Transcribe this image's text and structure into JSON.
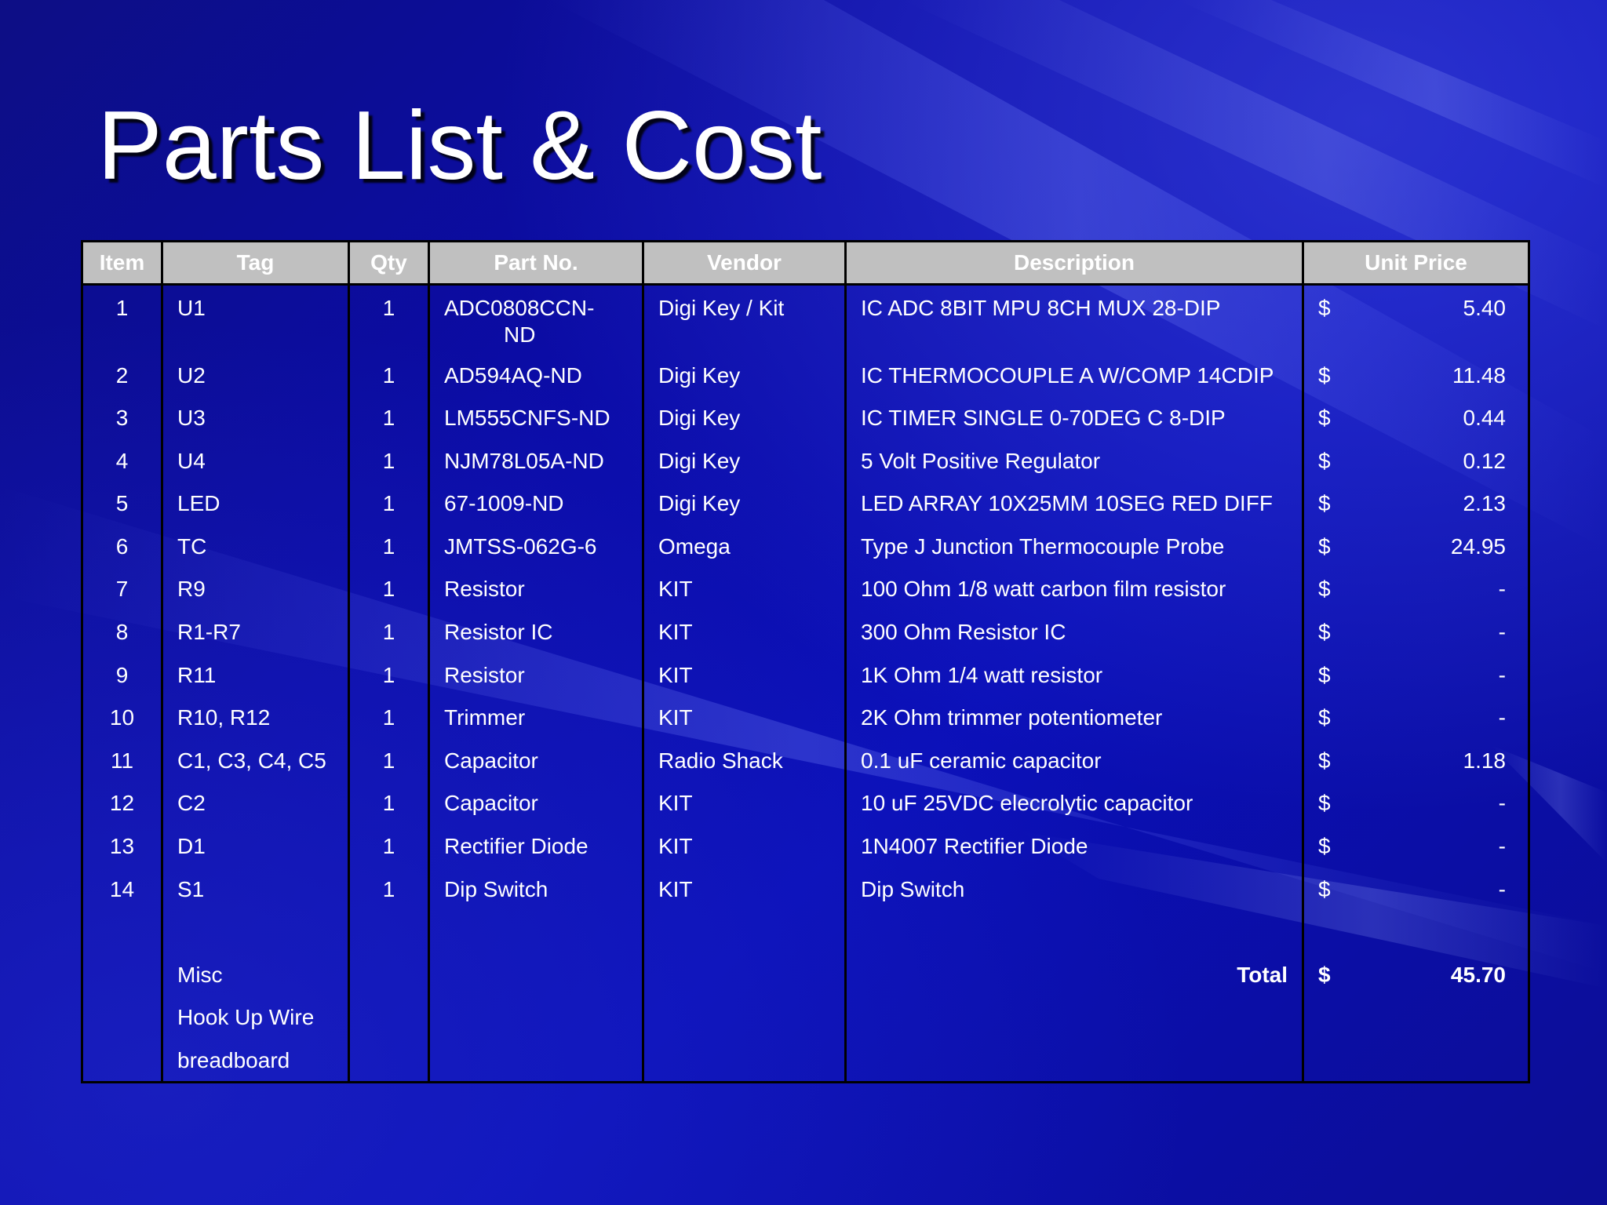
{
  "slide": {
    "title": "Parts List & Cost"
  },
  "table": {
    "headers": [
      "Item",
      "Tag",
      "Qty",
      "Part No.",
      "Vendor",
      "Description",
      "Unit Price"
    ],
    "rows": [
      {
        "item": "1",
        "tag": "U1",
        "qty": "1",
        "part_line1": "ADC0808CCN-",
        "part_line2": "ND",
        "vendor": "Digi Key / Kit",
        "description": "IC ADC 8BIT MPU 8CH MUX 28-DIP",
        "currency": "$",
        "price": "5.40"
      },
      {
        "item": "2",
        "tag": "U2",
        "qty": "1",
        "part": "AD594AQ-ND",
        "vendor": "Digi Key",
        "description": "IC THERMOCOUPLE A W/COMP 14CDIP",
        "currency": "$",
        "price": "11.48"
      },
      {
        "item": "3",
        "tag": "U3",
        "qty": "1",
        "part": "LM555CNFS-ND",
        "vendor": "Digi Key",
        "description": "IC TIMER SINGLE 0-70DEG C 8-DIP",
        "currency": "$",
        "price": "0.44"
      },
      {
        "item": "4",
        "tag": "U4",
        "qty": "1",
        "part": "NJM78L05A-ND",
        "vendor": "Digi Key",
        "description": "5 Volt Positive Regulator",
        "currency": "$",
        "price": "0.12"
      },
      {
        "item": "5",
        "tag": "LED",
        "qty": "1",
        "part": "67-1009-ND",
        "vendor": "Digi Key",
        "description": "LED ARRAY 10X25MM 10SEG RED DIFF",
        "currency": "$",
        "price": "2.13"
      },
      {
        "item": "6",
        "tag": "TC",
        "qty": "1",
        "part": "JMTSS-062G-6",
        "vendor": "Omega",
        "description": "Type J Junction Thermocouple Probe",
        "currency": "$",
        "price": "24.95"
      },
      {
        "item": "7",
        "tag": "R9",
        "qty": "1",
        "part": "Resistor",
        "vendor": "KIT",
        "description": "100 Ohm 1/8 watt carbon film resistor",
        "currency": "$",
        "price": "-"
      },
      {
        "item": "8",
        "tag": "R1-R7",
        "qty": "1",
        "part": "Resistor IC",
        "vendor": "KIT",
        "description": "300 Ohm Resistor IC",
        "currency": "$",
        "price": "-"
      },
      {
        "item": "9",
        "tag": "R11",
        "qty": "1",
        "part": "Resistor",
        "vendor": "KIT",
        "description": "1K Ohm 1/4 watt resistor",
        "currency": "$",
        "price": "-"
      },
      {
        "item": "10",
        "tag": "R10, R12",
        "qty": "1",
        "part": "Trimmer",
        "vendor": "KIT",
        "description": "2K Ohm trimmer potentiometer",
        "currency": "$",
        "price": "-"
      },
      {
        "item": "11",
        "tag": "C1, C3, C4, C5",
        "qty": "1",
        "part": "Capacitor",
        "vendor": "Radio Shack",
        "description": "0.1 uF ceramic capacitor",
        "currency": "$",
        "price": "1.18"
      },
      {
        "item": "12",
        "tag": "C2",
        "qty": "1",
        "part": "Capacitor",
        "vendor": "KIT",
        "description": "10 uF 25VDC elecrolytic capacitor",
        "currency": "$",
        "price": "-"
      },
      {
        "item": "13",
        "tag": "D1",
        "qty": "1",
        "part": "Rectifier Diode",
        "vendor": "KIT",
        "description": "1N4007 Rectifier Diode",
        "currency": "$",
        "price": "-"
      },
      {
        "item": "14",
        "tag": "S1",
        "qty": "1",
        "part": "Dip Switch",
        "vendor": "KIT",
        "description": "Dip Switch",
        "currency": "$",
        "price": "-"
      }
    ],
    "misc": {
      "label": "Misc",
      "items": [
        "Hook Up Wire",
        "breadboard"
      ]
    },
    "total": {
      "label": "Total",
      "currency": "$",
      "value": "45.70"
    }
  },
  "colors": {
    "background": "#0a0c9a",
    "header_fill": "#c0c0c0",
    "border": "#000000",
    "text": "#ffffff"
  }
}
